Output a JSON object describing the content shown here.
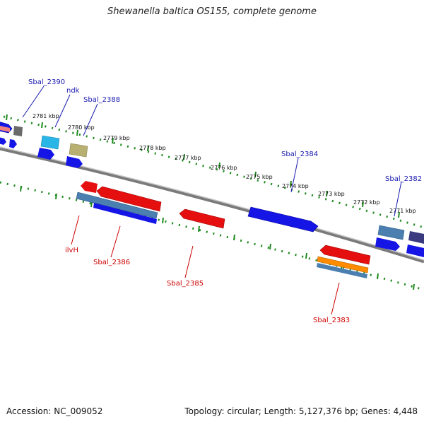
{
  "title": "Shewanella baltica OS155, complete genome",
  "footer": {
    "accession": "Accession: NC_009052",
    "summary": "Topology: circular; Length: 5,127,376 bp; Genes: 4,448"
  },
  "colors": {
    "backbone": "#8a8a8a",
    "scale_ticks": "#1f8a1f",
    "label_forward": "#1a1ab0",
    "label_reverse": "#cc0000"
  },
  "scale_labels": [
    "2781 kbp",
    "2780 kbp",
    "2779 kbp",
    "2778 kbp",
    "2777 kbp",
    "2776 kbp",
    "2775 kbp",
    "2774 kbp",
    "2773 kbp",
    "2772 kbp",
    "2771 kbp"
  ],
  "gene_labels": [
    {
      "text": "Sbal_2390",
      "strand": "forward"
    },
    {
      "text": "ndk",
      "strand": "forward"
    },
    {
      "text": "Sbal_2388",
      "strand": "forward"
    },
    {
      "text": "Sbal_2384",
      "strand": "forward"
    },
    {
      "text": "Sbal_2382",
      "strand": "forward"
    },
    {
      "text": "ilvH",
      "strand": "reverse"
    },
    {
      "text": "Sbal_2386",
      "strand": "reverse"
    },
    {
      "text": "Sbal_2385",
      "strand": "reverse"
    },
    {
      "text": "Sbal_2383",
      "strand": "reverse"
    }
  ],
  "features": [
    {
      "kind": "forward-cds",
      "color": "#1515e6"
    },
    {
      "kind": "reverse-cds",
      "color": "#e60f0f"
    },
    {
      "kind": "rna",
      "color": "#4a7fb0"
    },
    {
      "kind": "other",
      "color": "#ff8c00"
    }
  ]
}
